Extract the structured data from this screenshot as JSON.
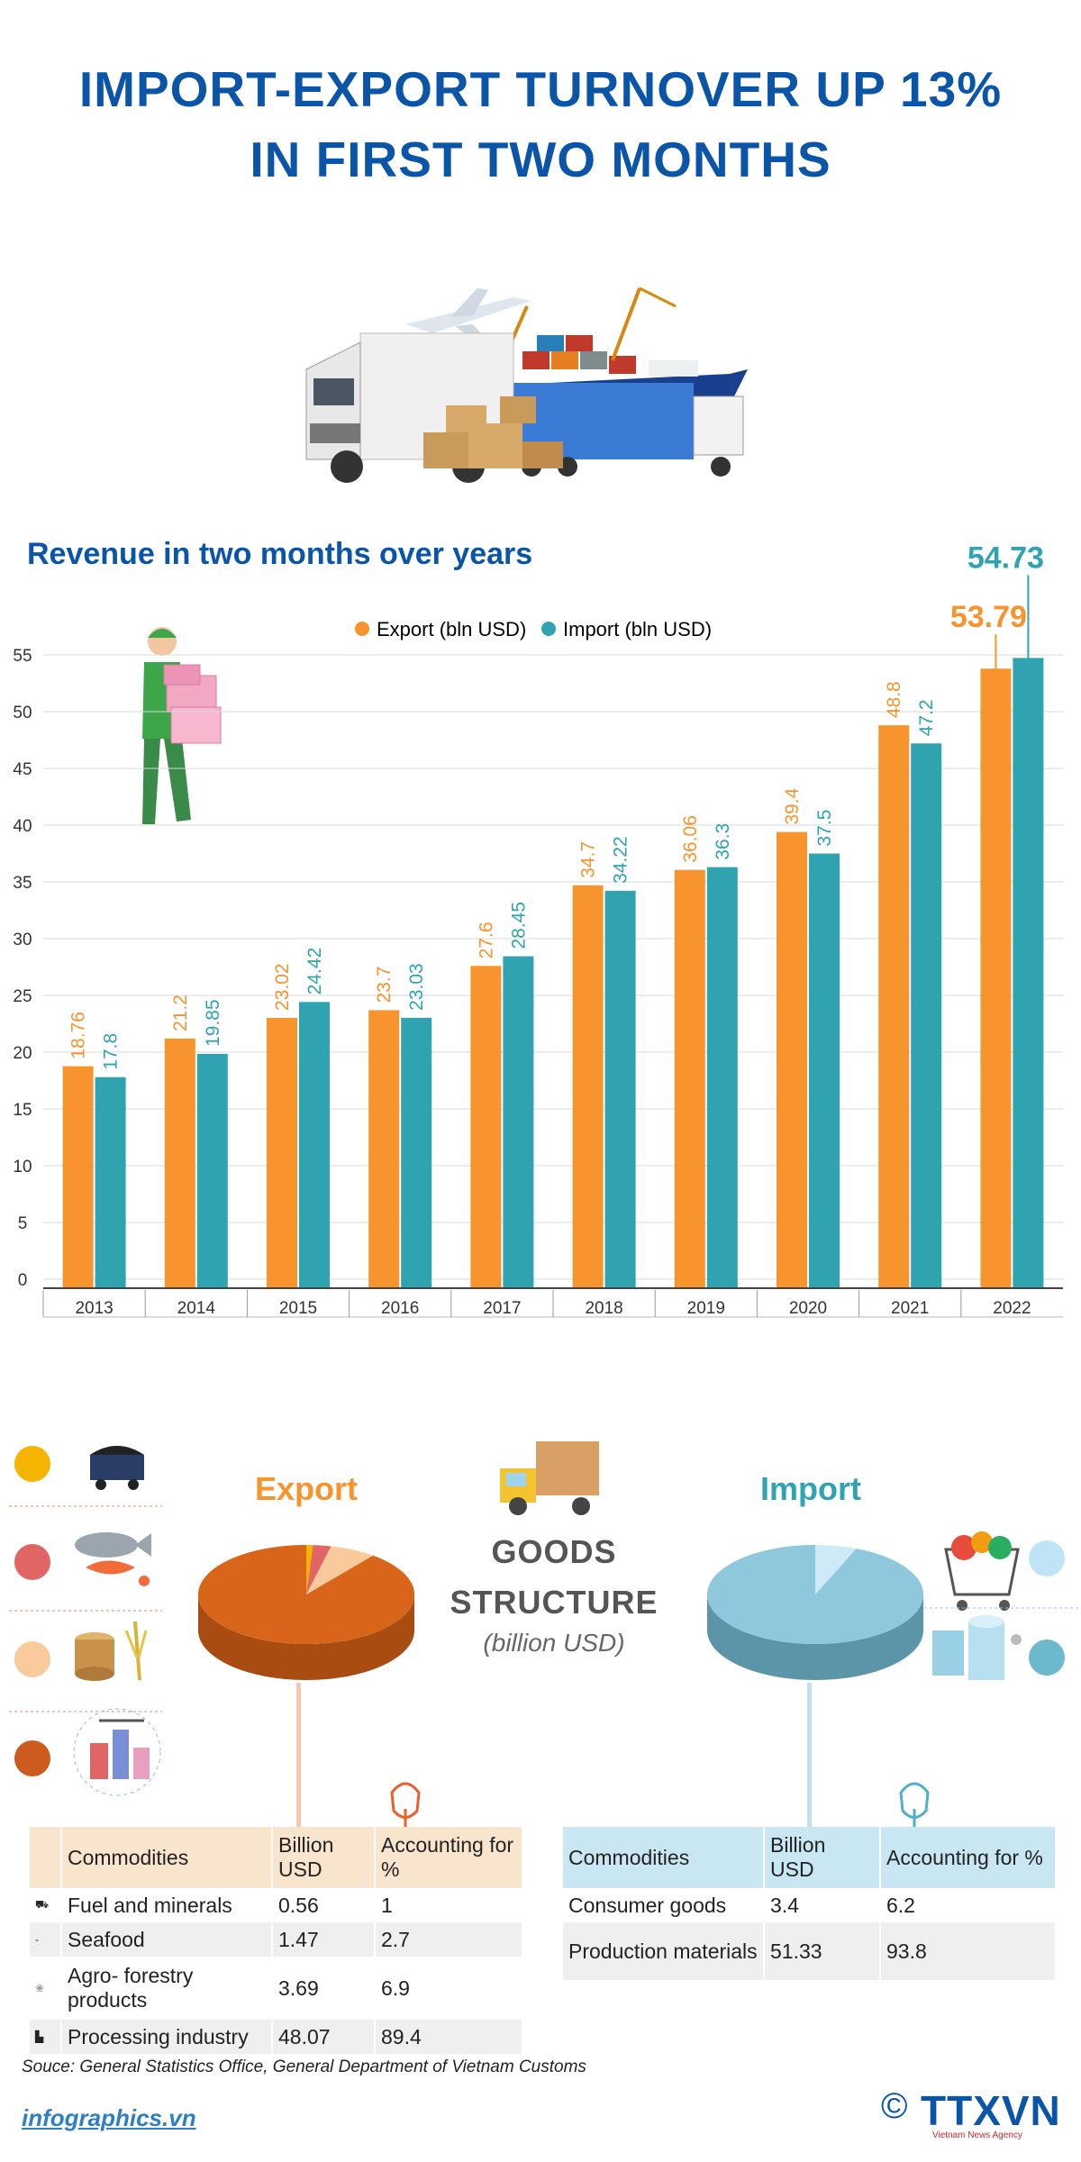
{
  "title": {
    "line1": "IMPORT-EXPORT TURNOVER UP 13%",
    "line2": "IN FIRST TWO MONTHS"
  },
  "chart_heading": "Revenue in two months over years",
  "colors": {
    "export": "#f7942d",
    "import": "#2fa3b0",
    "title": "#0a55a8"
  },
  "chart_data": [
    {
      "type": "bar",
      "title": "Revenue in two months over years",
      "categories": [
        "2013",
        "2014",
        "2015",
        "2016",
        "2017",
        "2018",
        "2019",
        "2020",
        "2021",
        "2022"
      ],
      "series": [
        {
          "name": "Export (bln USD)",
          "values": [
            18.76,
            21.2,
            23.02,
            23.7,
            27.6,
            34.7,
            36.06,
            39.4,
            48.8,
            53.79
          ]
        },
        {
          "name": "Import (bln USD)",
          "values": [
            17.8,
            19.85,
            24.42,
            23.03,
            28.45,
            34.22,
            36.3,
            37.5,
            47.2,
            54.73
          ]
        }
      ],
      "ylim": [
        0,
        55
      ],
      "yticks": [
        0,
        5,
        10,
        15,
        20,
        25,
        30,
        35,
        40,
        45,
        50,
        55
      ],
      "grid": true,
      "legend": "top-center",
      "labels_export": [
        "18.76",
        "21.2",
        "23.02",
        "23.7",
        "27.6",
        "34.7",
        "36.06",
        "39.4",
        "48.8",
        "53.79"
      ],
      "labels_import": [
        "17.8",
        "19.85",
        "24.42",
        "23.03",
        "28.45",
        "34.22",
        "36.3",
        "37.5",
        "47.2",
        "54.73"
      ]
    },
    {
      "type": "pie",
      "title": "Export",
      "categories": [
        "Fuel and minerals",
        "Seafood",
        "Agro- forestry products",
        "Processing industry"
      ],
      "values": [
        1,
        2.7,
        6.9,
        89.4
      ],
      "colors": [
        "#f4b400",
        "#e06666",
        "#f9cb9c",
        "#d9651a"
      ]
    },
    {
      "type": "pie",
      "title": "Import",
      "categories": [
        "Consumer goods",
        "Production materials"
      ],
      "values": [
        6.2,
        93.8
      ],
      "colors": [
        "#cfeaf7",
        "#8fc8dc"
      ]
    }
  ],
  "goods": {
    "line1": "GOODS",
    "line2": "STRUCTURE",
    "unit": "(billion USD)"
  },
  "export_table": {
    "heading": "Export",
    "headers": [
      "Commodities",
      "Billion USD",
      "Accounting for %"
    ],
    "rows": [
      {
        "name": "Fuel and minerals",
        "usd": "0.56",
        "pct": "1"
      },
      {
        "name": "Seafood",
        "usd": "1.47",
        "pct": "2.7"
      },
      {
        "name": "Agro- forestry products",
        "usd": "3.69",
        "pct": "6.9"
      },
      {
        "name": "Processing industry",
        "usd": "48.07",
        "pct": "89.4"
      }
    ]
  },
  "import_table": {
    "heading": "Import",
    "headers": [
      "Commodities",
      "Billion USD",
      "Accounting for %"
    ],
    "rows": [
      {
        "name": "Consumer goods",
        "usd": "3.4",
        "pct": "6.2"
      },
      {
        "name": "Production materials",
        "usd": "51.33",
        "pct": "93.8"
      }
    ]
  },
  "source": "Souce: General Statistics Office, General Department of Vietnam Customs",
  "website": "infographics.vn",
  "brand": {
    "copyright": "©",
    "name": "TTXVN",
    "tagline": "Vietnam News Agency"
  },
  "icons": [
    "truck-icon",
    "airplane-icon",
    "cargo-ship-icon",
    "boxes-icon",
    "worker-icon",
    "coal-cart-icon",
    "fish-icon",
    "wood-rice-icon",
    "factory-icon",
    "delivery-truck-icon",
    "shopping-cart-icon",
    "fabric-roll-icon",
    "hand-pointer-icon"
  ]
}
